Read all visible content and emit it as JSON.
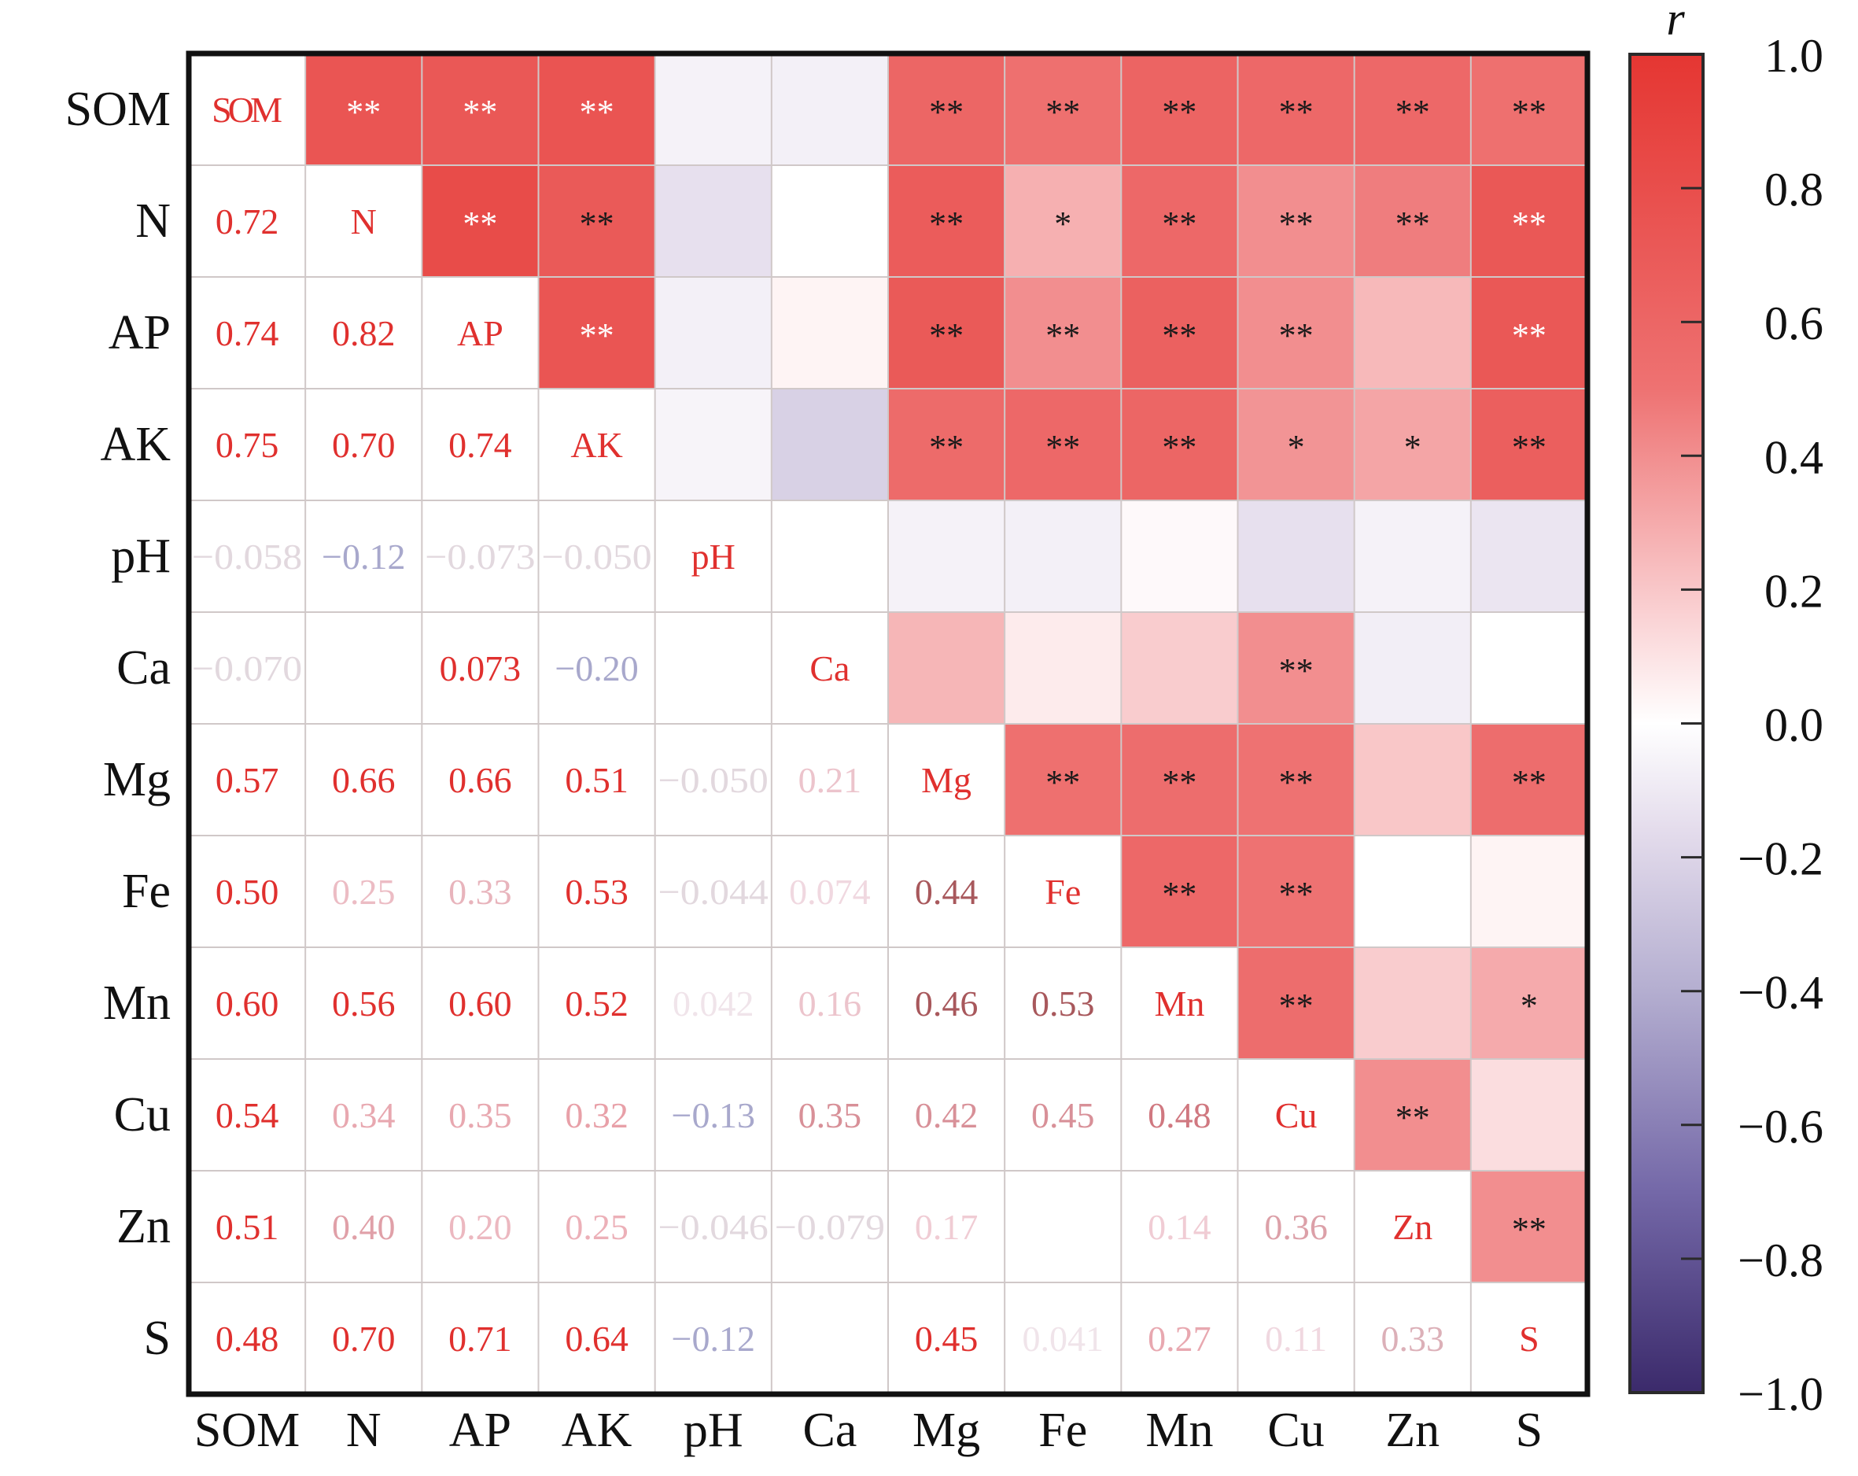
{
  "chart_data": {
    "type": "heatmap",
    "title": "",
    "variables": [
      "SOM",
      "N",
      "AP",
      "AK",
      "pH",
      "Ca",
      "Mg",
      "Fe",
      "Mn",
      "Cu",
      "Zn",
      "S"
    ],
    "colorbar": {
      "label": "r",
      "range": [
        -1.0,
        1.0
      ],
      "ticks": [
        1.0,
        0.8,
        0.6,
        0.4,
        0.2,
        0.0,
        -0.2,
        -0.4,
        -0.6,
        -0.8,
        -1.0
      ],
      "tick_labels": [
        "1.0",
        "0.8",
        "0.6",
        "0.4",
        "0.2",
        "0.0",
        "−0.2",
        "−0.4",
        "−0.6",
        "−0.8",
        "−1.0"
      ],
      "colors": {
        "high": "#e53632",
        "mid": "#ffffff",
        "low": "#3b2a6b"
      }
    },
    "lower_triangle_labels": [
      [],
      [
        "0.72"
      ],
      [
        "0.74",
        "0.82"
      ],
      [
        "0.75",
        "0.70",
        "0.74"
      ],
      [
        "−0.058",
        "−0.12",
        "−0.073",
        "−0.050"
      ],
      [
        "−0.070",
        "",
        "0.073",
        "−0.20",
        ""
      ],
      [
        "0.57",
        "0.66",
        "0.66",
        "0.51",
        "−0.050",
        "0.21"
      ],
      [
        "0.50",
        "0.25",
        "0.33",
        "0.53",
        "−0.044",
        "0.074",
        "0.44"
      ],
      [
        "0.60",
        "0.56",
        "0.60",
        "0.52",
        "0.042",
        "0.16",
        "0.46",
        "0.53"
      ],
      [
        "0.54",
        "0.34",
        "0.35",
        "0.32",
        "−0.13",
        "0.35",
        "0.42",
        "0.45",
        "0.48"
      ],
      [
        "0.51",
        "0.40",
        "0.20",
        "0.25",
        "−0.046",
        "−0.079",
        "0.17",
        "",
        "0.14",
        "0.36"
      ],
      [
        "0.48",
        "0.70",
        "0.71",
        "0.64",
        "−0.12",
        "",
        "0.45",
        "0.041",
        "0.27",
        "0.11",
        "0.33"
      ]
    ],
    "lower_triangle_text_colors": [
      [],
      [
        "#e0302e"
      ],
      [
        "#e0302e",
        "#e0302e"
      ],
      [
        "#e0302e",
        "#e0302e",
        "#e0302e"
      ],
      [
        "#e2d8de",
        "#a8a8cc",
        "#e2d8de",
        "#e2d8de"
      ],
      [
        "#e2d8de",
        "#ffffff",
        "#e0302e",
        "#a8a8cc",
        "#ffffff"
      ],
      [
        "#e0302e",
        "#e0302e",
        "#e0302e",
        "#e0302e",
        "#e2d8de",
        "#ecc4cc"
      ],
      [
        "#e0302e",
        "#ecbcc4",
        "#e8b4bc",
        "#e0302e",
        "#e2d8de",
        "#f0d8e0",
        "#a8585c"
      ],
      [
        "#e0302e",
        "#e0302e",
        "#e0302e",
        "#e0302e",
        "#f0e4ea",
        "#ecc4cc",
        "#a8585c",
        "#a8585c"
      ],
      [
        "#e0302e",
        "#e8a8b0",
        "#e8a8b0",
        "#e8a0a8",
        "#a8a8cc",
        "#d89098",
        "#d89098",
        "#d89098",
        "#d07880"
      ],
      [
        "#e0302e",
        "#e0a0a8",
        "#ecb8c0",
        "#ecb0b8",
        "#e2d8de",
        "#e2d8de",
        "#f0ccd4",
        "#ffffff",
        "#f0ccd4",
        "#dca0a8"
      ],
      [
        "#e0302e",
        "#e0302e",
        "#e0302e",
        "#e0302e",
        "#a8a8cc",
        "#ffffff",
        "#e0302e",
        "#f0e4ea",
        "#e8a8b0",
        "#f0d8e0",
        "#dcb0b8"
      ]
    ],
    "upper_triangle_r": [
      [
        null,
        0.74,
        0.72,
        0.75,
        -0.06,
        -0.07,
        0.6,
        0.52,
        0.62,
        0.58,
        0.58,
        0.52
      ],
      [
        null,
        null,
        0.82,
        0.7,
        -0.14,
        0.0,
        0.68,
        0.28,
        0.58,
        0.4,
        0.46,
        0.72
      ],
      [
        null,
        null,
        null,
        0.74,
        -0.07,
        0.04,
        0.7,
        0.4,
        0.64,
        0.4,
        0.25,
        0.72
      ],
      [
        null,
        null,
        null,
        null,
        -0.05,
        -0.22,
        0.56,
        0.58,
        0.6,
        0.38,
        0.32,
        0.66
      ],
      [
        null,
        null,
        null,
        null,
        null,
        0.0,
        -0.06,
        -0.07,
        0.02,
        -0.14,
        -0.06,
        -0.12
      ],
      [
        null,
        null,
        null,
        null,
        null,
        null,
        0.26,
        0.07,
        0.18,
        0.4,
        -0.08,
        0.0
      ],
      [
        null,
        null,
        null,
        null,
        null,
        null,
        null,
        0.52,
        0.54,
        0.5,
        0.2,
        0.54
      ],
      [
        null,
        null,
        null,
        null,
        null,
        null,
        null,
        null,
        0.58,
        0.5,
        0.0,
        0.04
      ],
      [
        null,
        null,
        null,
        null,
        null,
        null,
        null,
        null,
        null,
        0.54,
        0.18,
        0.3
      ],
      [
        null,
        null,
        null,
        null,
        null,
        null,
        null,
        null,
        null,
        null,
        0.4,
        0.12
      ],
      [
        null,
        null,
        null,
        null,
        null,
        null,
        null,
        null,
        null,
        null,
        null,
        0.4
      ],
      [
        null,
        null,
        null,
        null,
        null,
        null,
        null,
        null,
        null,
        null,
        null,
        null
      ]
    ],
    "upper_triangle_significance": [
      [
        "",
        "**",
        "**",
        "**",
        "",
        "",
        "**",
        "**",
        "**",
        "**",
        "**",
        "**"
      ],
      [
        "",
        "",
        "**",
        "**",
        "",
        "",
        "**",
        "*",
        "**",
        "**",
        "**",
        "**"
      ],
      [
        "",
        "",
        "",
        "**",
        "",
        "",
        "**",
        "**",
        "**",
        "**",
        "",
        "**"
      ],
      [
        "",
        "",
        "",
        "",
        "",
        "",
        "**",
        "**",
        "**",
        "*",
        "*",
        "**"
      ],
      [
        "",
        "",
        "",
        "",
        "",
        "",
        "",
        "",
        "",
        "",
        "",
        ""
      ],
      [
        "",
        "",
        "",
        "",
        "",
        "",
        "",
        "",
        "",
        "**",
        "",
        ""
      ],
      [
        "",
        "",
        "",
        "",
        "",
        "",
        "",
        "**",
        "**",
        "**",
        "",
        "**"
      ],
      [
        "",
        "",
        "",
        "",
        "",
        "",
        "",
        "",
        "**",
        "**",
        "",
        ""
      ],
      [
        "",
        "",
        "",
        "",
        "",
        "",
        "",
        "",
        "",
        "**",
        "",
        "*"
      ],
      [
        "",
        "",
        "",
        "",
        "",
        "",
        "",
        "",
        "",
        "",
        "**",
        ""
      ],
      [
        "",
        "",
        "",
        "",
        "",
        "",
        "",
        "",
        "",
        "",
        "",
        "**"
      ],
      [
        "",
        "",
        "",
        "",
        "",
        "",
        "",
        "",
        "",
        "",
        "",
        ""
      ]
    ],
    "significance_mark_colors": {
      "white": [
        [
          0,
          1
        ],
        [
          0,
          2
        ],
        [
          0,
          3
        ],
        [
          1,
          2
        ],
        [
          1,
          11
        ],
        [
          2,
          3
        ],
        [
          2,
          11
        ]
      ],
      "default": "#1a1a1a",
      "white_color": "#ffffff"
    },
    "diagonal_label_color": "#e0302e",
    "axis_label_color": "#111111",
    "grid_color": "#d0c8c8",
    "frame_color": "#111111"
  }
}
